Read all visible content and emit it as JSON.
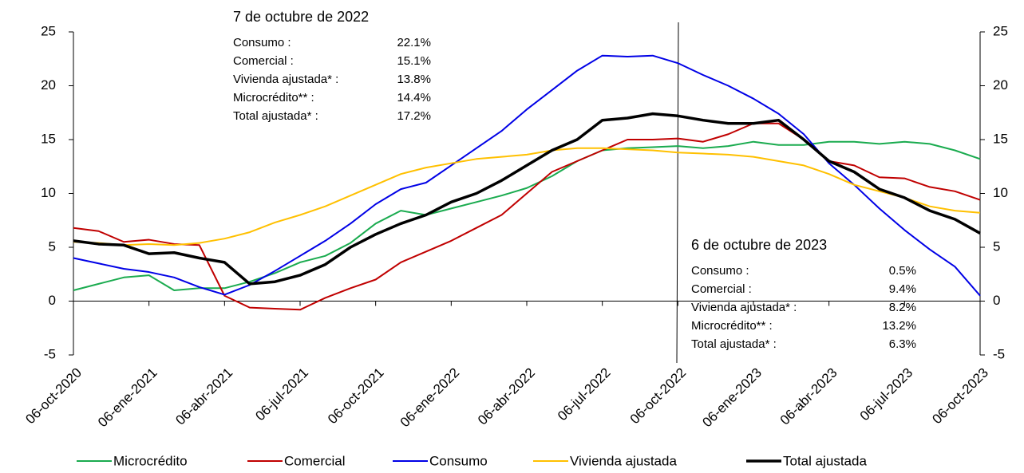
{
  "chart_data": {
    "type": "line",
    "categories": [
      "06-oct-2020",
      null,
      null,
      "06-ene-2021",
      null,
      null,
      "06-abr-2021",
      null,
      null,
      "06-jul-2021",
      null,
      null,
      "06-oct-2021",
      null,
      null,
      "06-ene-2022",
      null,
      null,
      "06-abr-2022",
      null,
      null,
      "06-jul-2022",
      null,
      null,
      "06-oct-2022",
      null,
      null,
      "06-ene-2023",
      null,
      null,
      "06-abr-2023",
      null,
      null,
      "06-jul-2023",
      null,
      null,
      "06-oct-2023"
    ],
    "ylim": [
      -5,
      25
    ],
    "yticks": [
      -5,
      0,
      5,
      10,
      15,
      20,
      25
    ],
    "series": [
      {
        "name": "Microcrédito",
        "color": "#1aab4f",
        "width": 2,
        "values": [
          1.0,
          1.6,
          2.2,
          2.4,
          1.0,
          1.2,
          1.2,
          1.8,
          2.6,
          3.6,
          4.2,
          5.4,
          7.2,
          8.4,
          8.0,
          8.6,
          9.2,
          9.8,
          10.5,
          11.6,
          13.0,
          14.0,
          14.2,
          14.3,
          14.4,
          14.2,
          14.4,
          14.8,
          14.5,
          14.5,
          14.8,
          14.8,
          14.6,
          14.8,
          14.6,
          14.0,
          13.2
        ]
      },
      {
        "name": "Comercial",
        "color": "#c00000",
        "width": 2,
        "values": [
          6.8,
          6.5,
          5.5,
          5.7,
          5.3,
          5.2,
          0.5,
          -0.6,
          -0.7,
          -0.8,
          0.3,
          1.2,
          2.0,
          3.6,
          4.6,
          5.6,
          6.8,
          8.0,
          10.0,
          12.0,
          13.0,
          14.0,
          15.0,
          15.0,
          15.1,
          14.8,
          15.5,
          16.5,
          16.5,
          15.0,
          13.0,
          12.6,
          11.5,
          11.4,
          10.6,
          10.2,
          9.4
        ]
      },
      {
        "name": "Consumo",
        "color": "#0000e6",
        "width": 2,
        "values": [
          4.0,
          3.5,
          3.0,
          2.7,
          2.2,
          1.3,
          0.6,
          1.5,
          2.8,
          4.2,
          5.6,
          7.2,
          9.0,
          10.4,
          11.0,
          12.6,
          14.2,
          15.8,
          17.8,
          19.6,
          21.4,
          22.8,
          22.7,
          22.8,
          22.1,
          21.0,
          20.0,
          18.8,
          17.4,
          15.5,
          12.8,
          10.8,
          8.6,
          6.6,
          4.8,
          3.2,
          0.5
        ]
      },
      {
        "name": "Vivienda ajustada",
        "color": "#ffc000",
        "width": 2,
        "values": [
          5.5,
          5.4,
          5.2,
          5.3,
          5.2,
          5.4,
          5.8,
          6.4,
          7.3,
          8.0,
          8.8,
          9.8,
          10.8,
          11.8,
          12.4,
          12.8,
          13.2,
          13.4,
          13.6,
          14.0,
          14.2,
          14.2,
          14.1,
          14.0,
          13.8,
          13.7,
          13.6,
          13.4,
          13.0,
          12.6,
          11.8,
          10.8,
          10.2,
          9.6,
          8.8,
          8.4,
          8.2
        ]
      },
      {
        "name": "Total ajustada",
        "color": "#000000",
        "width": 3.5,
        "values": [
          5.6,
          5.3,
          5.2,
          4.4,
          4.5,
          4.0,
          3.6,
          1.6,
          1.8,
          2.4,
          3.4,
          5.0,
          6.2,
          7.2,
          8.0,
          9.2,
          10.0,
          11.2,
          12.6,
          14.0,
          15.0,
          16.8,
          17.0,
          17.4,
          17.2,
          16.8,
          16.5,
          16.5,
          16.8,
          15.0,
          13.0,
          12.0,
          10.4,
          9.6,
          8.4,
          7.6,
          6.3
        ]
      }
    ],
    "annotations": [
      {
        "title": "7 de octubre de 2022",
        "rows": [
          [
            "Consumo :",
            "22.1%"
          ],
          [
            "Comercial :",
            "15.1%"
          ],
          [
            "Vivienda ajustada* :",
            "13.8%"
          ],
          [
            "Microcrédito** :",
            "14.4%"
          ],
          [
            "Total ajustada* :",
            "17.2%"
          ]
        ]
      },
      {
        "title": "6 de octubre de 2023",
        "rows": [
          [
            "Consumo :",
            "0.5%"
          ],
          [
            "Comercial :",
            "9.4%"
          ],
          [
            "Vivienda ajustada* :",
            "8.2%"
          ],
          [
            "Microcrédito** :",
            "13.2%"
          ],
          [
            "Total ajustada* :",
            "6.3%"
          ]
        ]
      }
    ]
  }
}
